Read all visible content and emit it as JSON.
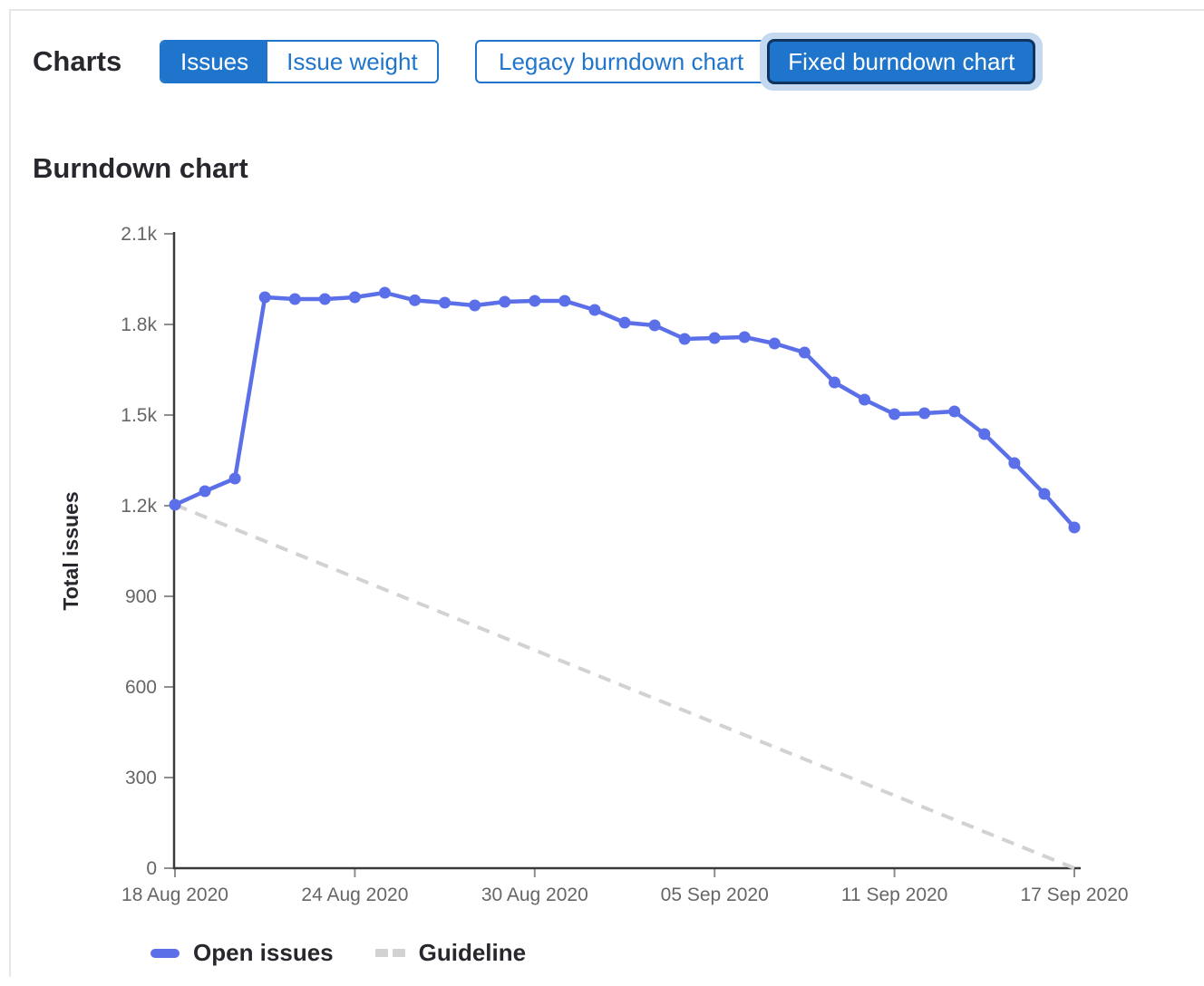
{
  "header": {
    "charts_label": "Charts"
  },
  "toggles": {
    "issue_type": [
      {
        "label": "Issues",
        "selected": true
      },
      {
        "label": "Issue weight",
        "selected": false
      }
    ],
    "chart_type": [
      {
        "label": "Legacy burndown chart",
        "selected": false
      },
      {
        "label": "Fixed burndown chart",
        "selected": true
      }
    ]
  },
  "section": {
    "title": "Burndown chart"
  },
  "chart_data": {
    "type": "line",
    "title": "Burndown chart",
    "xlabel": "",
    "ylabel": "Total issues",
    "ylim": [
      0,
      2100
    ],
    "ytick_values": [
      0,
      300,
      600,
      900,
      1200,
      1500,
      1800,
      2100
    ],
    "ytick_labels": [
      "0",
      "300",
      "600",
      "900",
      "1.2k",
      "1.5k",
      "1.8k",
      "2.1k"
    ],
    "x": [
      "18 Aug 2020",
      "19 Aug 2020",
      "20 Aug 2020",
      "21 Aug 2020",
      "22 Aug 2020",
      "23 Aug 2020",
      "24 Aug 2020",
      "25 Aug 2020",
      "26 Aug 2020",
      "27 Aug 2020",
      "28 Aug 2020",
      "29 Aug 2020",
      "30 Aug 2020",
      "31 Aug 2020",
      "01 Sep 2020",
      "02 Sep 2020",
      "03 Sep 2020",
      "04 Sep 2020",
      "05 Sep 2020",
      "06 Sep 2020",
      "07 Sep 2020",
      "08 Sep 2020",
      "09 Sep 2020",
      "10 Sep 2020",
      "11 Sep 2020",
      "12 Sep 2020",
      "13 Sep 2020",
      "14 Sep 2020",
      "15 Sep 2020",
      "16 Sep 2020",
      "17 Sep 2020"
    ],
    "xtick_indices": [
      0,
      6,
      12,
      18,
      24,
      30
    ],
    "xtick_labels": [
      "18 Aug 2020",
      "24 Aug 2020",
      "30 Aug 2020",
      "05 Sep 2020",
      "11 Sep 2020",
      "17 Sep 2020"
    ],
    "series": [
      {
        "name": "Open issues",
        "style": "solid",
        "color": "#5b70e8",
        "values": [
          1203,
          1248,
          1290,
          1890,
          1884,
          1884,
          1890,
          1905,
          1880,
          1872,
          1863,
          1875,
          1878,
          1878,
          1848,
          1806,
          1797,
          1752,
          1755,
          1758,
          1737,
          1707,
          1608,
          1551,
          1503,
          1506,
          1512,
          1437,
          1341,
          1239,
          1128
        ]
      }
    ],
    "guideline": {
      "name": "Guideline",
      "style": "dashed",
      "color": "#d2d2d2",
      "start_value": 1203,
      "end_value": 0
    },
    "grid": false,
    "legend_position": "bottom"
  },
  "colors": {
    "accent_blue": "#1f75cb",
    "line_blue": "#5b70e8",
    "guideline_gray": "#d2d2d2",
    "axis_color": "#3a3a3a",
    "tick_label_color": "#666666",
    "text_dark": "#28272d",
    "focus_halo": "#c4d8ef",
    "selected_ring": "#0f3460",
    "border_light": "#e7e7e7"
  }
}
